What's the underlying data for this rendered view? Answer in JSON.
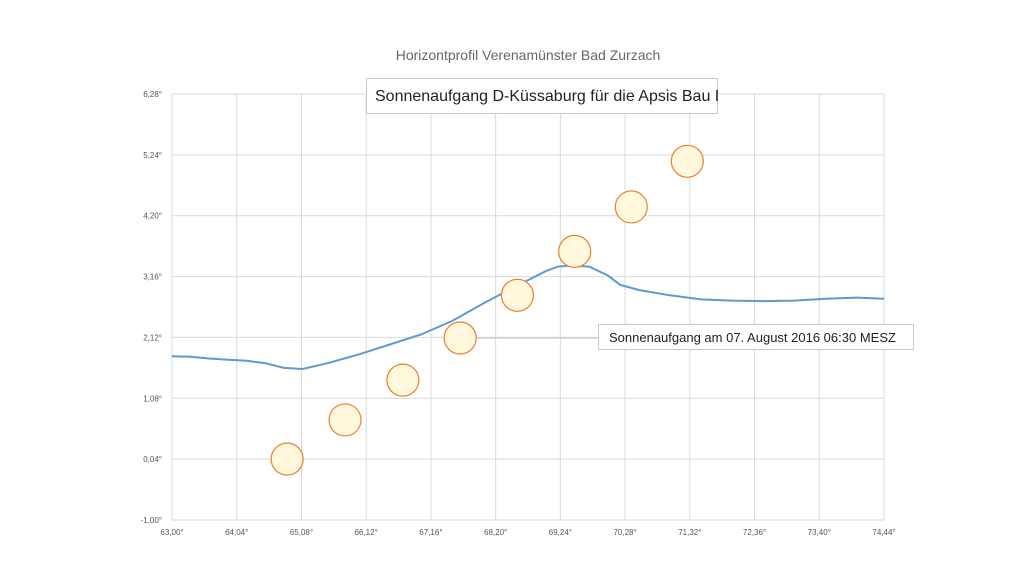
{
  "chart_data": {
    "type": "line",
    "title": "Horizontprofil Verenamünster  Bad Zurzach",
    "xlabel": "",
    "ylabel": "",
    "xlim": [
      63.0,
      74.44
    ],
    "ylim": [
      -1.0,
      6.28
    ],
    "x_ticks": [
      "63,00°",
      "64,04°",
      "65,08°",
      "66,12°",
      "67,16°",
      "68,20°",
      "69,24°",
      "70,28°",
      "71,32°",
      "72,36°",
      "73,40°",
      "74,44°"
    ],
    "y_ticks": [
      "-1,00°",
      "0,04°",
      "1,08°",
      "2,12°",
      "3,16°",
      "4,20°",
      "5,24°",
      "6,28°"
    ],
    "grid": true,
    "series": [
      {
        "kind": "line",
        "color": "#5b9bd5",
        "x": [
          63.0,
          63.3,
          63.6,
          63.9,
          64.2,
          64.5,
          64.8,
          65.1,
          65.5,
          66.0,
          66.5,
          67.0,
          67.5,
          68.0,
          68.5,
          69.0,
          69.2,
          69.4,
          69.7,
          70.0,
          70.2,
          70.5,
          71.0,
          71.5,
          72.0,
          72.5,
          73.0,
          73.5,
          74.0,
          74.44
        ],
        "y": [
          1.8,
          1.79,
          1.76,
          1.74,
          1.72,
          1.68,
          1.6,
          1.58,
          1.68,
          1.83,
          2.0,
          2.17,
          2.4,
          2.7,
          2.98,
          3.25,
          3.33,
          3.35,
          3.33,
          3.18,
          3.02,
          2.93,
          2.84,
          2.77,
          2.75,
          2.74,
          2.75,
          2.78,
          2.8,
          2.78
        ]
      },
      {
        "kind": "scatter",
        "name": "Sonnenaufgang",
        "color": "#ed7d31",
        "fill": "#fff8dc",
        "x": [
          64.85,
          65.78,
          66.71,
          67.63,
          68.55,
          69.47,
          70.38,
          71.28
        ],
        "y": [
          0.04,
          0.71,
          1.39,
          2.11,
          2.84,
          3.59,
          4.35,
          5.13
        ]
      }
    ],
    "annotations": [
      {
        "text": "Sonnenaufgang D-Küssaburg für die Apsis Bau I"
      },
      {
        "text": "Sonnenaufgang am 07. August 2016 06:30 MESZ",
        "points_to_x": 67.63,
        "points_to_y": 2.11
      }
    ]
  }
}
